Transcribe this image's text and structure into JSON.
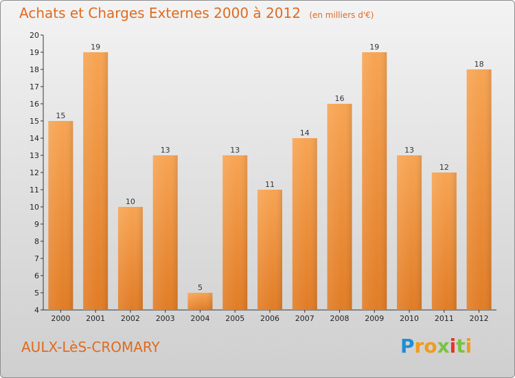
{
  "header": {
    "title": "Achats et Charges Externes 2000 à 2012",
    "unit": "(en milliers d'€)"
  },
  "footer": {
    "town": "AULX-LèS-CROMARY",
    "logo_letters": [
      "P",
      "r",
      "o",
      "x",
      "i",
      "t",
      "i"
    ],
    "logo_colors": [
      "#1c8fd6",
      "#f29a1f",
      "#f29a1f",
      "#7cc242",
      "#e8312f",
      "#7cc242",
      "#f29a1f"
    ]
  },
  "colors": {
    "title": "#e06a1f",
    "bar_top": "#f7a453",
    "bar_bottom": "#e17c25",
    "axis": "#333333"
  },
  "chart_data": {
    "type": "bar",
    "title": "Achats et Charges Externes 2000 à 2012",
    "subtitle": "(en milliers d'€)",
    "categories": [
      "2000",
      "2001",
      "2002",
      "2003",
      "2004",
      "2005",
      "2006",
      "2007",
      "2008",
      "2009",
      "2010",
      "2011",
      "2012"
    ],
    "values": [
      15,
      19,
      10,
      13,
      5,
      13,
      11,
      14,
      16,
      19,
      13,
      12,
      18
    ],
    "ylim": [
      4,
      20
    ],
    "yticks": [
      4,
      5,
      6,
      7,
      8,
      9,
      10,
      11,
      12,
      13,
      14,
      15,
      16,
      17,
      18,
      19,
      20
    ],
    "grid": false,
    "legend": "none"
  }
}
